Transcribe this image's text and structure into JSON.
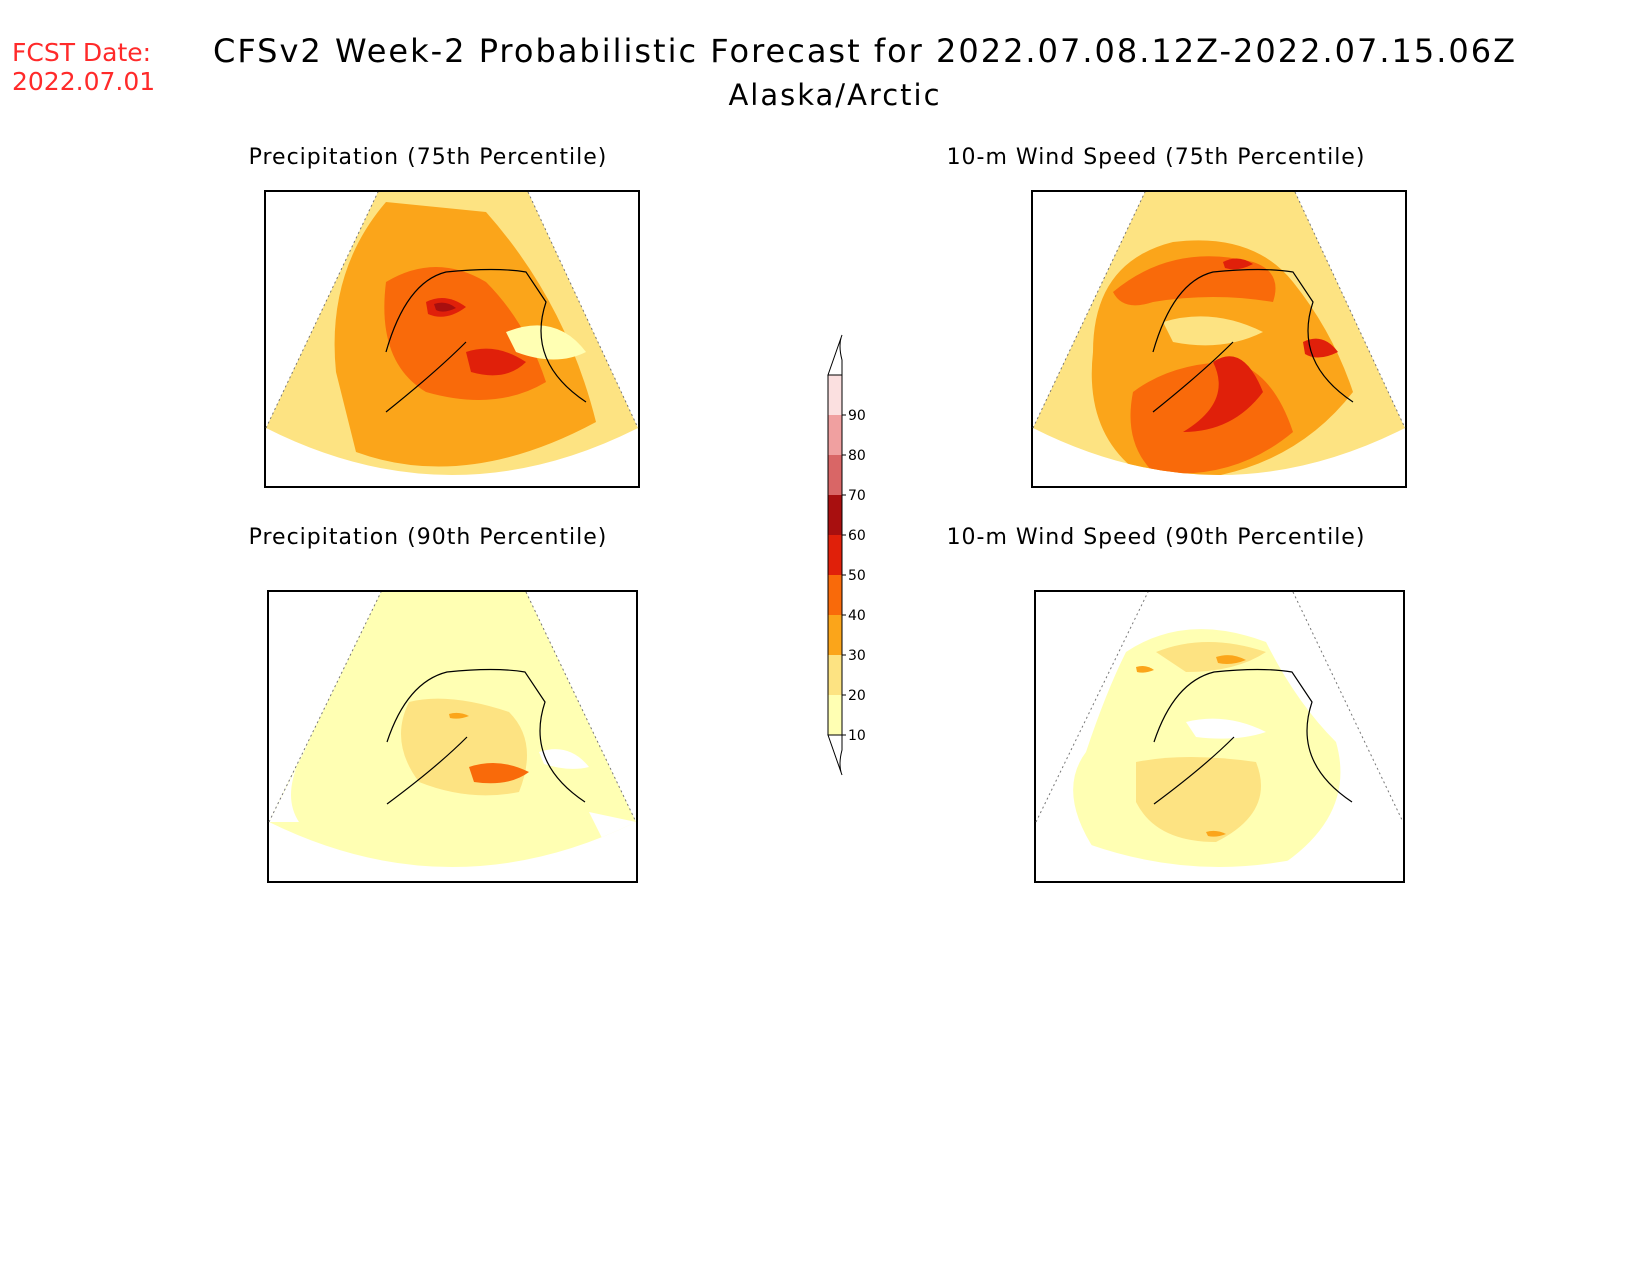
{
  "header": {
    "fcst_label": "FCST Date:",
    "fcst_date": "2022.07.01",
    "title": "CFSv2 Week-2 Probabilistic Forecast for 2022.07.08.12Z-2022.07.15.06Z",
    "region": "Alaska/Arctic"
  },
  "panels": [
    {
      "title": "Precipitation (75th Percentile)"
    },
    {
      "title": "10-m Wind Speed (75th Percentile)"
    },
    {
      "title": "Precipitation (90th Percentile)"
    },
    {
      "title": "10-m Wind Speed (90th Percentile)"
    }
  ],
  "colorbar": {
    "levels": [
      "10",
      "20",
      "30",
      "40",
      "50",
      "60",
      "70",
      "80",
      "90"
    ],
    "colors": [
      "#ffffb3",
      "#fde382",
      "#fba51a",
      "#f96a0a",
      "#e0200a",
      "#a80f0f",
      "#d96666",
      "#f0a0a0",
      "#fbe0e0"
    ]
  }
}
